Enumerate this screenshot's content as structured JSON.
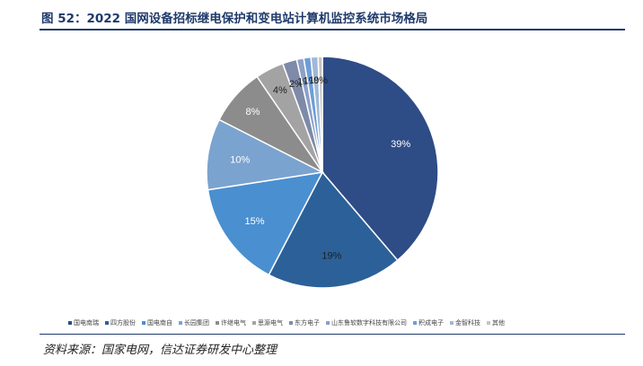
{
  "title": "图 52：2022 国网设备招标继电保护和变电站计算机监控系统市场格局",
  "source": "资料来源：国家电网，信达证券研发中心整理",
  "chart_data": {
    "type": "pie",
    "title": "",
    "legend_position": "bottom",
    "slices": [
      {
        "name": "国电南瑞",
        "value": 39,
        "label": "39%",
        "color": "#2e4c86"
      },
      {
        "name": "四方股份",
        "value": 19,
        "label": "19%",
        "color": "#2b6198"
      },
      {
        "name": "国电南自",
        "value": 15,
        "label": "15%",
        "color": "#4a8fd0"
      },
      {
        "name": "长园集团",
        "value": 10,
        "label": "10%",
        "color": "#7ba3cf"
      },
      {
        "name": "许继电气",
        "value": 8,
        "label": "8%",
        "color": "#8c8c8c"
      },
      {
        "name": "思源电气",
        "value": 4,
        "label": "4%",
        "color": "#a3a3a3"
      },
      {
        "name": "东方电子",
        "value": 2,
        "label": "2%",
        "color": "#7f8aa8"
      },
      {
        "name": "山东鲁软数字科技有限公司",
        "value": 1,
        "label": "1%",
        "color": "#8da0c6"
      },
      {
        "name": "积成电子",
        "value": 1,
        "label": "1%",
        "color": "#6d9ed8"
      },
      {
        "name": "金智科技",
        "value": 1,
        "label": "1%",
        "color": "#9fb9d6"
      },
      {
        "name": "其他",
        "value": 0,
        "label": "0%",
        "color": "#c4c4c4"
      }
    ]
  }
}
